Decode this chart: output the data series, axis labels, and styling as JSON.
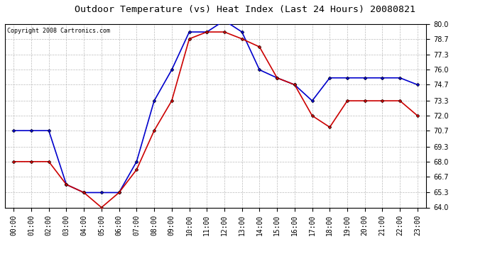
{
  "title": "Outdoor Temperature (vs) Heat Index (Last 24 Hours) 20080821",
  "copyright": "Copyright 2008 Cartronics.com",
  "hours": [
    "00:00",
    "01:00",
    "02:00",
    "03:00",
    "04:00",
    "05:00",
    "06:00",
    "07:00",
    "08:00",
    "09:00",
    "10:00",
    "11:00",
    "12:00",
    "13:00",
    "14:00",
    "15:00",
    "16:00",
    "17:00",
    "18:00",
    "19:00",
    "20:00",
    "21:00",
    "22:00",
    "23:00"
  ],
  "blue_temp": [
    70.7,
    70.7,
    70.7,
    66.0,
    65.3,
    65.3,
    65.3,
    68.0,
    73.3,
    76.0,
    79.3,
    79.3,
    80.3,
    79.3,
    76.0,
    75.3,
    74.7,
    73.3,
    75.3,
    75.3,
    75.3,
    75.3,
    75.3,
    74.7
  ],
  "red_heat": [
    68.0,
    68.0,
    68.0,
    66.0,
    65.3,
    64.0,
    65.3,
    67.3,
    70.7,
    73.3,
    78.7,
    79.3,
    79.3,
    78.7,
    78.0,
    75.3,
    74.7,
    72.0,
    71.0,
    73.3,
    73.3,
    73.3,
    73.3,
    72.0
  ],
  "ylim": [
    64.0,
    80.0
  ],
  "yticks": [
    64.0,
    65.3,
    66.7,
    68.0,
    69.3,
    70.7,
    72.0,
    73.3,
    74.7,
    76.0,
    77.3,
    78.7,
    80.0
  ],
  "blue_color": "#0000cc",
  "red_color": "#cc0000",
  "bg_color": "#ffffff",
  "plot_bg": "#ffffff",
  "grid_color": "#bbbbbb",
  "title_color": "#000000",
  "copyright_color": "#000000",
  "marker": "D",
  "marker_size": 2.5,
  "line_width": 1.2,
  "title_fontsize": 9.5,
  "tick_fontsize": 7,
  "copyright_fontsize": 6
}
